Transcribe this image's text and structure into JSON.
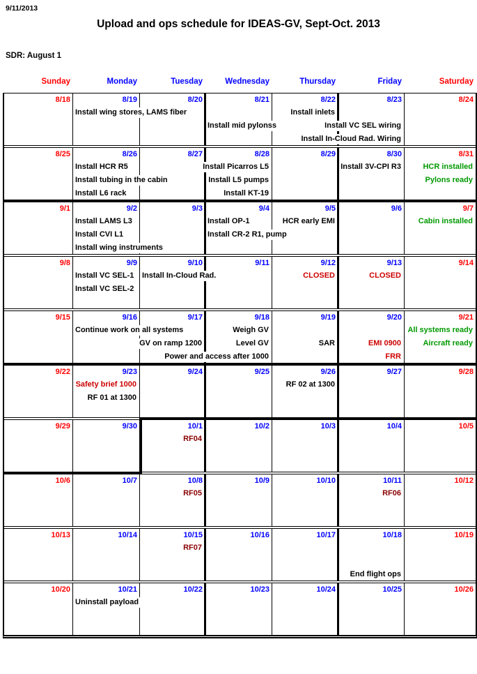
{
  "document": {
    "date_stamp": "9/11/2013",
    "title": "Upload and ops schedule for IDEAS-GV, Sept-Oct. 2013",
    "subtitle": "SDR: August 1"
  },
  "colors": {
    "date_red": "#FF0000",
    "date_blue": "#0000FF",
    "black": "#000000",
    "red": "#CC0000",
    "dark_red": "#8B0000",
    "green": "#009900"
  },
  "calendar": {
    "day_headers": [
      {
        "label": "Sunday",
        "color": "date_red"
      },
      {
        "label": "Monday",
        "color": "date_blue"
      },
      {
        "label": "Tuesday",
        "color": "date_blue"
      },
      {
        "label": "Wednesday",
        "color": "date_blue"
      },
      {
        "label": "Thursday",
        "color": "date_blue"
      },
      {
        "label": "Friday",
        "color": "date_blue"
      },
      {
        "label": "Saturday",
        "color": "date_red"
      }
    ],
    "weeks": [
      {
        "dates": [
          {
            "d": "8/18",
            "c": "date_red"
          },
          {
            "d": "8/19",
            "c": "date_blue"
          },
          {
            "d": "8/20",
            "c": "date_blue"
          },
          {
            "d": "8/21",
            "c": "date_blue"
          },
          {
            "d": "8/22",
            "c": "date_blue"
          },
          {
            "d": "8/23",
            "c": "date_blue"
          },
          {
            "d": "8/24",
            "c": "date_red"
          }
        ],
        "events": [
          {
            "text": "Install wing stores, LAMS fiber",
            "line": 1,
            "col": 1,
            "align": "left",
            "color": "black"
          },
          {
            "text": "Install inlets",
            "line": 1,
            "col": 4,
            "align": "right",
            "color": "black"
          },
          {
            "text": "Install mid pylonss",
            "line": 2,
            "col": 3,
            "align": "left",
            "color": "black"
          },
          {
            "text": "Install VC SEL wiring",
            "line": 2,
            "col": 5,
            "align": "right",
            "color": "black"
          },
          {
            "text": "Install In-Cloud Rad. Wiring",
            "line": 3,
            "col": 5,
            "align": "right",
            "color": "black"
          }
        ]
      },
      {
        "dates": [
          {
            "d": "8/25",
            "c": "date_red"
          },
          {
            "d": "8/26",
            "c": "date_blue"
          },
          {
            "d": "8/27",
            "c": "date_blue"
          },
          {
            "d": "8/28",
            "c": "date_blue"
          },
          {
            "d": "8/29",
            "c": "date_blue"
          },
          {
            "d": "8/30",
            "c": "date_blue"
          },
          {
            "d": "8/31",
            "c": "date_red"
          }
        ],
        "events": [
          {
            "text": "Install HCR R5",
            "line": 1,
            "col": 1,
            "align": "left",
            "color": "black"
          },
          {
            "text": "Install Picarros L5",
            "line": 1,
            "col": 3,
            "align": "right",
            "color": "black"
          },
          {
            "text": "Install 3V-CPI R3",
            "line": 1,
            "col": 5,
            "align": "right",
            "color": "black"
          },
          {
            "text": "HCR installed",
            "line": 1,
            "col": 6,
            "align": "right",
            "color": "green"
          },
          {
            "text": "Install tubing in the cabin",
            "line": 2,
            "col": 1,
            "align": "left",
            "color": "black"
          },
          {
            "text": "Install L5 pumps",
            "line": 2,
            "col": 3,
            "align": "right",
            "color": "black"
          },
          {
            "text": "Pylons ready",
            "line": 2,
            "col": 6,
            "align": "right",
            "color": "green"
          },
          {
            "text": "Install L6 rack",
            "line": 3,
            "col": 1,
            "align": "left",
            "color": "black"
          },
          {
            "text": "Install KT-19",
            "line": 3,
            "col": 3,
            "align": "right",
            "color": "black"
          }
        ]
      },
      {
        "dates": [
          {
            "d": "9/1",
            "c": "date_red"
          },
          {
            "d": "9/2",
            "c": "date_blue"
          },
          {
            "d": "9/3",
            "c": "date_blue"
          },
          {
            "d": "9/4",
            "c": "date_blue"
          },
          {
            "d": "9/5",
            "c": "date_blue"
          },
          {
            "d": "9/6",
            "c": "date_blue"
          },
          {
            "d": "9/7",
            "c": "date_red"
          }
        ],
        "events": [
          {
            "text": "Install LAMS L3",
            "line": 1,
            "col": 1,
            "align": "left",
            "color": "black"
          },
          {
            "text": "Install OP-1",
            "line": 1,
            "col": 3,
            "align": "left",
            "color": "black"
          },
          {
            "text": "HCR early EMI",
            "line": 1,
            "col": 4,
            "align": "right",
            "color": "black"
          },
          {
            "text": "Cabin installed",
            "line": 1,
            "col": 6,
            "align": "right",
            "color": "green"
          },
          {
            "text": "Install CVI L1",
            "line": 2,
            "col": 1,
            "align": "left",
            "color": "black"
          },
          {
            "text": "Install CR-2 R1, pump",
            "line": 2,
            "col": 3,
            "align": "left",
            "color": "black"
          },
          {
            "text": "Install wing instruments",
            "line": 3,
            "col": 1,
            "align": "left",
            "color": "black"
          }
        ]
      },
      {
        "dates": [
          {
            "d": "9/8",
            "c": "date_red"
          },
          {
            "d": "9/9",
            "c": "date_blue"
          },
          {
            "d": "9/10",
            "c": "date_blue"
          },
          {
            "d": "9/11",
            "c": "date_blue"
          },
          {
            "d": "9/12",
            "c": "date_blue"
          },
          {
            "d": "9/13",
            "c": "date_blue"
          },
          {
            "d": "9/14",
            "c": "date_red"
          }
        ],
        "events": [
          {
            "text": "Install VC SEL-1",
            "line": 1,
            "col": 1,
            "align": "left",
            "color": "black"
          },
          {
            "text": "Install In-Cloud Rad.",
            "line": 1,
            "col": 2,
            "align": "left",
            "color": "black"
          },
          {
            "text": "CLOSED",
            "line": 1,
            "col": 4,
            "align": "right",
            "color": "red"
          },
          {
            "text": "CLOSED",
            "line": 1,
            "col": 5,
            "align": "right",
            "color": "red"
          },
          {
            "text": "Install VC SEL-2",
            "line": 2,
            "col": 1,
            "align": "left",
            "color": "black"
          }
        ]
      },
      {
        "dates": [
          {
            "d": "9/15",
            "c": "date_red"
          },
          {
            "d": "9/16",
            "c": "date_blue"
          },
          {
            "d": "9/17",
            "c": "date_blue"
          },
          {
            "d": "9/18",
            "c": "date_blue"
          },
          {
            "d": "9/19",
            "c": "date_blue"
          },
          {
            "d": "9/20",
            "c": "date_blue"
          },
          {
            "d": "9/21",
            "c": "date_red"
          }
        ],
        "events": [
          {
            "text": "Continue work on all systems",
            "line": 1,
            "col": 1,
            "align": "left",
            "color": "black"
          },
          {
            "text": "Weigh GV",
            "line": 1,
            "col": 3,
            "align": "right",
            "color": "black"
          },
          {
            "text": "All systems ready",
            "line": 1,
            "col": 6,
            "align": "right",
            "color": "green"
          },
          {
            "text": "GV on ramp 1200",
            "line": 2,
            "col": 2,
            "align": "right",
            "color": "black"
          },
          {
            "text": "Level GV",
            "line": 2,
            "col": 3,
            "align": "right",
            "color": "black"
          },
          {
            "text": "SAR",
            "line": 2,
            "col": 4,
            "align": "right",
            "color": "black"
          },
          {
            "text": "EMI 0900",
            "line": 2,
            "col": 5,
            "align": "right",
            "color": "red"
          },
          {
            "text": "Aircraft ready",
            "line": 2,
            "col": 6,
            "align": "right",
            "color": "green"
          },
          {
            "text": "Power and access after 1000",
            "line": 3,
            "col": 3,
            "align": "right",
            "color": "black"
          },
          {
            "text": "FRR",
            "line": 3,
            "col": 5,
            "align": "right",
            "color": "red"
          }
        ]
      },
      {
        "dates": [
          {
            "d": "9/22",
            "c": "date_red"
          },
          {
            "d": "9/23",
            "c": "date_blue"
          },
          {
            "d": "9/24",
            "c": "date_blue"
          },
          {
            "d": "9/25",
            "c": "date_blue"
          },
          {
            "d": "9/26",
            "c": "date_blue"
          },
          {
            "d": "9/27",
            "c": "date_blue"
          },
          {
            "d": "9/28",
            "c": "date_red"
          }
        ],
        "events": [
          {
            "text": "Safety brief 1000",
            "line": 1,
            "col": 1,
            "align": "right",
            "color": "red"
          },
          {
            "text": "RF 02 at 1300",
            "line": 1,
            "col": 4,
            "align": "right",
            "color": "black"
          },
          {
            "text": "RF 01 at 1300",
            "line": 2,
            "col": 1,
            "align": "right",
            "color": "black"
          }
        ]
      },
      {
        "dates": [
          {
            "d": "9/29",
            "c": "date_red"
          },
          {
            "d": "9/30",
            "c": "date_blue"
          },
          {
            "d": "10/1",
            "c": "date_blue"
          },
          {
            "d": "10/2",
            "c": "date_blue"
          },
          {
            "d": "10/3",
            "c": "date_blue"
          },
          {
            "d": "10/4",
            "c": "date_blue"
          },
          {
            "d": "10/5",
            "c": "date_red"
          }
        ],
        "events": [
          {
            "text": "RF04",
            "line": 1,
            "col": 2,
            "align": "right",
            "color": "dark_red"
          }
        ]
      },
      {
        "dates": [
          {
            "d": "10/6",
            "c": "date_red"
          },
          {
            "d": "10/7",
            "c": "date_blue"
          },
          {
            "d": "10/8",
            "c": "date_blue"
          },
          {
            "d": "10/9",
            "c": "date_blue"
          },
          {
            "d": "10/10",
            "c": "date_blue"
          },
          {
            "d": "10/11",
            "c": "date_blue"
          },
          {
            "d": "10/12",
            "c": "date_red"
          }
        ],
        "events": [
          {
            "text": "RF05",
            "line": 1,
            "col": 2,
            "align": "right",
            "color": "dark_red"
          },
          {
            "text": "RF06",
            "line": 1,
            "col": 5,
            "align": "right",
            "color": "dark_red"
          }
        ]
      },
      {
        "dates": [
          {
            "d": "10/13",
            "c": "date_red"
          },
          {
            "d": "10/14",
            "c": "date_blue"
          },
          {
            "d": "10/15",
            "c": "date_blue"
          },
          {
            "d": "10/16",
            "c": "date_blue"
          },
          {
            "d": "10/17",
            "c": "date_blue"
          },
          {
            "d": "10/18",
            "c": "date_blue"
          },
          {
            "d": "10/19",
            "c": "date_red"
          }
        ],
        "events": [
          {
            "text": "RF07",
            "line": 1,
            "col": 2,
            "align": "right",
            "color": "dark_red"
          },
          {
            "text": "End flight ops",
            "line": 3,
            "col": 5,
            "align": "right",
            "color": "black"
          }
        ]
      },
      {
        "dates": [
          {
            "d": "10/20",
            "c": "date_red"
          },
          {
            "d": "10/21",
            "c": "date_blue"
          },
          {
            "d": "10/22",
            "c": "date_blue"
          },
          {
            "d": "10/23",
            "c": "date_blue"
          },
          {
            "d": "10/24",
            "c": "date_blue"
          },
          {
            "d": "10/25",
            "c": "date_blue"
          },
          {
            "d": "10/26",
            "c": "date_red"
          }
        ],
        "events": [
          {
            "text": "Uninstall payload",
            "line": 1,
            "col": 1,
            "align": "left",
            "color": "black"
          }
        ]
      }
    ]
  }
}
